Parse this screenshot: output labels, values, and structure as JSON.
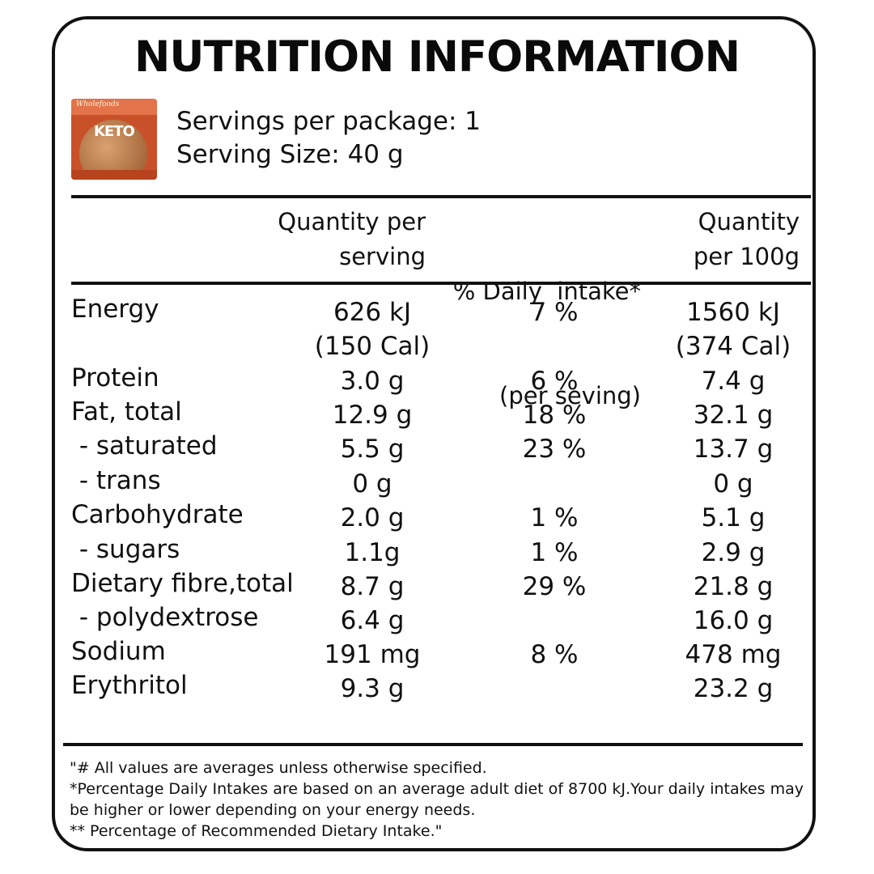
{
  "title": "NUTRITION INFORMATION",
  "servings_per_package": "Servings per package: 1",
  "serving_size": "Serving Size: 40 g",
  "package": {
    "brand": "Wholefoods",
    "product": "KETO"
  },
  "headers": {
    "per_serving": [
      "Quantity per",
      "serving"
    ],
    "daily_intake": [
      "% Daily  intake*",
      "(per seving)"
    ],
    "per_100g": [
      "Quantity",
      "per 100g"
    ]
  },
  "rows": [
    {
      "label": "Energy",
      "per_serving": "626 kJ",
      "per_serving_2": "(150 Cal)",
      "daily": "7 %",
      "per_100g": "1560 kJ",
      "per_100g_2": "(374 Cal)"
    },
    {
      "label": "Protein",
      "per_serving": "3.0 g",
      "daily": "6 %",
      "per_100g": "7.4 g"
    },
    {
      "label": "Fat, total",
      "per_serving": "12.9 g",
      "daily": "18 %",
      "per_100g": "32.1 g"
    },
    {
      "label": " - saturated",
      "per_serving": "5.5 g",
      "daily": "23 %",
      "per_100g": "13.7 g"
    },
    {
      "label": " - trans",
      "per_serving": "0 g",
      "daily": "",
      "per_100g": "0 g"
    },
    {
      "label": "Carbohydrate",
      "per_serving": "2.0 g",
      "daily": "1 %",
      "per_100g": "5.1 g"
    },
    {
      "label": " - sugars",
      "per_serving": "1.1g",
      "daily": "1 %",
      "per_100g": "2.9 g"
    },
    {
      "label": "Dietary fibre,total",
      "per_serving": "8.7 g",
      "daily": "29 %",
      "per_100g": "21.8 g"
    },
    {
      "label": " - polydextrose",
      "per_serving": "6.4 g",
      "daily": "",
      "per_100g": "16.0 g"
    },
    {
      "label": "Sodium",
      "per_serving": "191 mg",
      "daily": "8 %",
      "per_100g": "478 mg"
    },
    {
      "label": "Erythritol",
      "per_serving": "9.3 g",
      "daily": "",
      "per_100g": "23.2 g"
    }
  ],
  "footnotes": [
    "\"# All values are averages unless otherwise specified.",
    "*Percentage Daily Intakes are based on an average adult diet of 8700 kJ.Your daily intakes may",
    "be higher or lower depending on your energy needs.",
    "** Percentage of Recommended Dietary Intake.\""
  ],
  "colors": {
    "ink": "#111111",
    "package": "#c9512a"
  }
}
